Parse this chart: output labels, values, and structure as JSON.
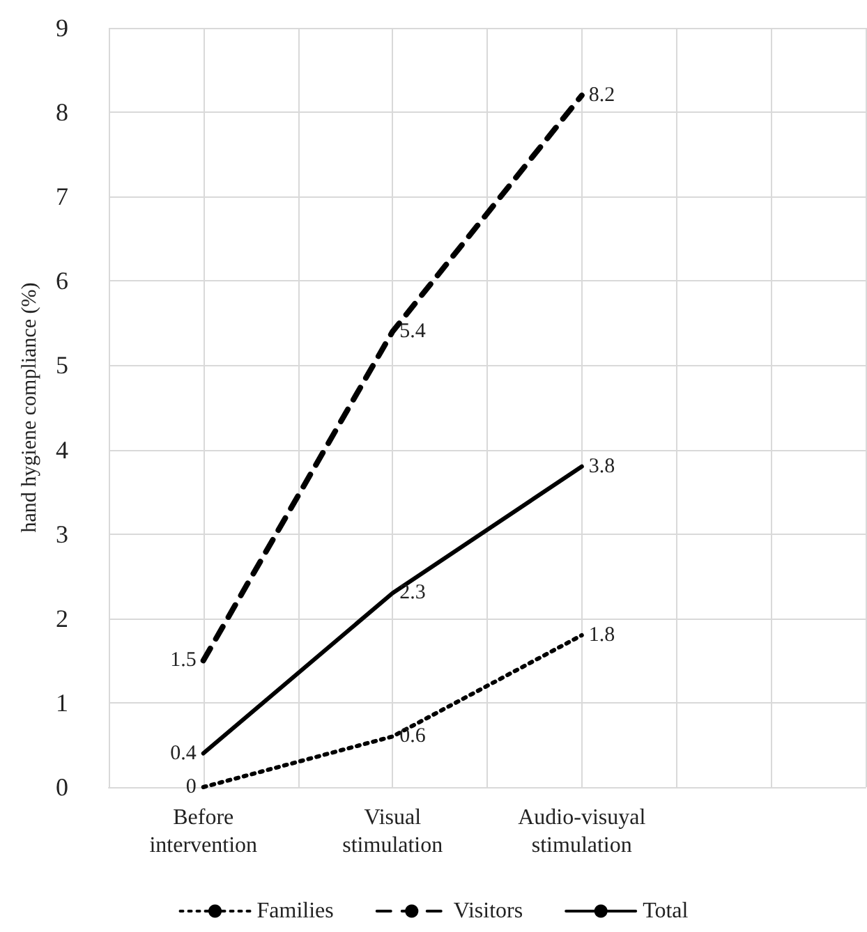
{
  "chart_data": {
    "type": "line",
    "ylabel": "hand hygiene compliance (%)",
    "categories": [
      "Before\nintervention",
      "Visual\nstimulation",
      "Audio-visuyal\nstimulation",
      null
    ],
    "series": [
      {
        "name": "Families",
        "color": "#000000",
        "values": [
          0,
          0.6,
          1.8,
          null
        ],
        "line_style": "dotted"
      },
      {
        "name": "Visitors",
        "color": "#000000",
        "values": [
          1.5,
          5.4,
          8.2,
          null
        ],
        "line_style": "dashed"
      },
      {
        "name": "Total",
        "color": "#000000",
        "values": [
          0.4,
          2.3,
          3.8,
          null
        ],
        "line_style": "solid"
      }
    ],
    "ylim": [
      0,
      9
    ],
    "yticks": [
      0,
      1,
      2,
      3,
      4,
      5,
      6,
      7,
      8,
      9
    ],
    "grid": true,
    "legend": "bottom",
    "marker": "none",
    "data_labels": true
  }
}
